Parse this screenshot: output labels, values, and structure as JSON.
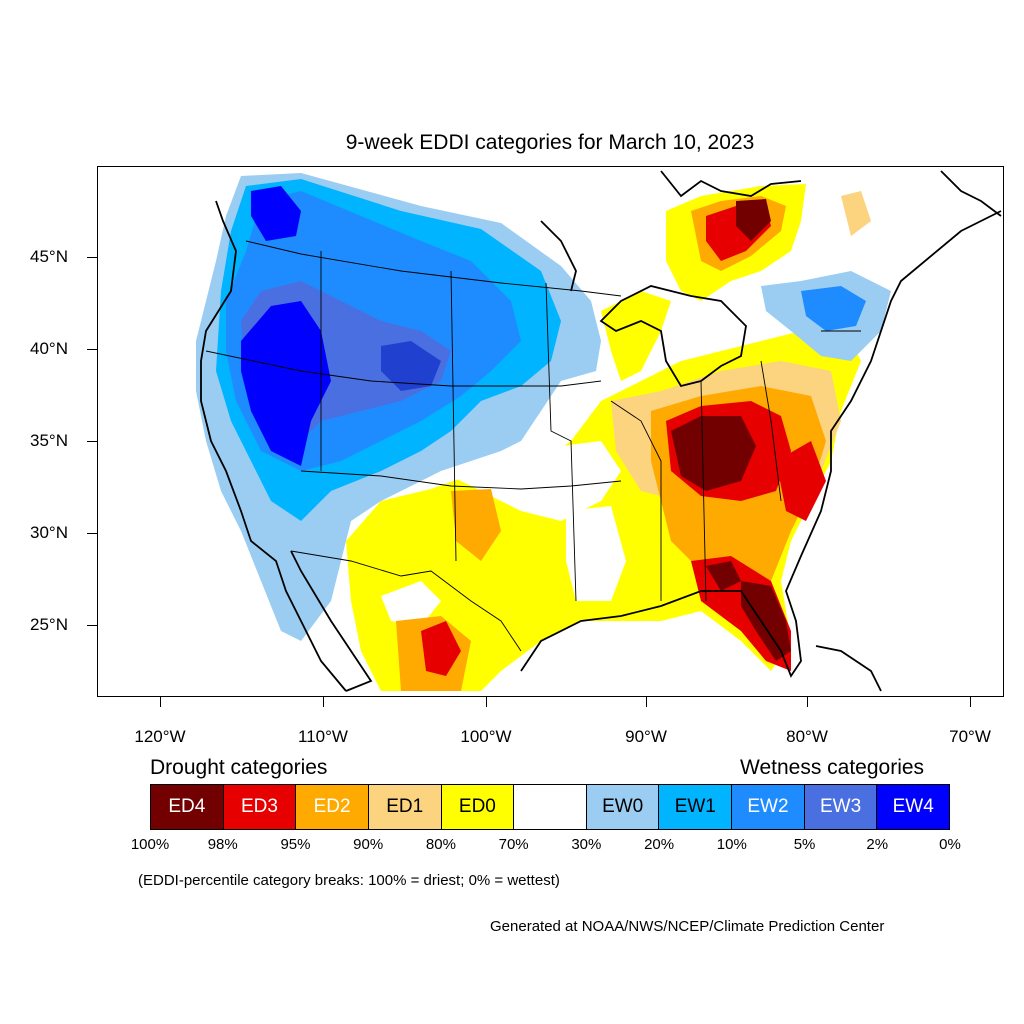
{
  "title": "9-week EDDI categories for March 10, 2023",
  "axes": {
    "lat_labels": [
      "45°N",
      "40°N",
      "35°N",
      "30°N",
      "25°N"
    ],
    "lon_labels": [
      "120°W",
      "110°W",
      "100°W",
      "90°W",
      "80°W",
      "70°W"
    ]
  },
  "legend": {
    "drought_title": "Drought categories",
    "wetness_title": "Wetness categories",
    "categories": [
      {
        "label": "ED4",
        "color": "#730000",
        "text_color": "#ffffff"
      },
      {
        "label": "ED3",
        "color": "#e60000",
        "text_color": "#ffffff"
      },
      {
        "label": "ED2",
        "color": "#ffaa00",
        "text_color": "#ffffff"
      },
      {
        "label": "ED1",
        "color": "#fcd37f",
        "text_color": "#000000"
      },
      {
        "label": "ED0",
        "color": "#ffff00",
        "text_color": "#000000"
      },
      {
        "label": "",
        "color": "#ffffff",
        "text_color": "#000000"
      },
      {
        "label": "EW0",
        "color": "#9bcdf2",
        "text_color": "#000000"
      },
      {
        "label": "EW1",
        "color": "#00b4ff",
        "text_color": "#000000"
      },
      {
        "label": "EW2",
        "color": "#1e8cff",
        "text_color": "#ffffff"
      },
      {
        "label": "EW3",
        "color": "#4a6fe0",
        "text_color": "#ffffff"
      },
      {
        "label": "EW4",
        "color": "#0000ff",
        "text_color": "#ffffff"
      }
    ],
    "percentiles": [
      "100%",
      "98%",
      "95%",
      "90%",
      "80%",
      "70%",
      "30%",
      "20%",
      "10%",
      "5%",
      "2%",
      "0%"
    ]
  },
  "note": "(EDDI-percentile category breaks: 100% = driest; 0% = wettest)",
  "credit": "Generated at NOAA/NWS/NCEP/Climate Prediction Center"
}
